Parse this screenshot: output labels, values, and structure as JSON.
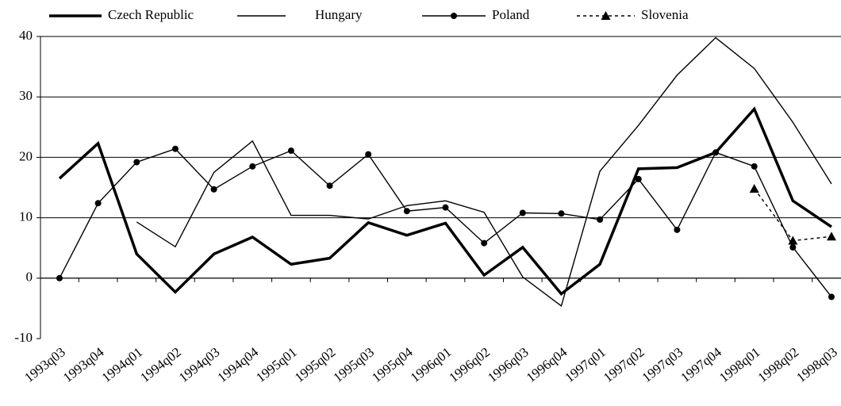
{
  "chart_data": {
    "type": "line",
    "categories": [
      "1993q03",
      "1993q04",
      "1994q01",
      "1994q02",
      "1994q03",
      "1994q04",
      "1995q01",
      "1995q02",
      "1995q03",
      "1995q04",
      "1996q01",
      "1996q02",
      "1996q03",
      "1996q04",
      "1997q01",
      "1997q02",
      "1997q03",
      "1997q04",
      "1998q01",
      "1998q02",
      "1998q03"
    ],
    "ylim": [
      -10,
      40
    ],
    "yticks": [
      -10,
      0,
      10,
      20,
      30,
      40
    ],
    "grid": true,
    "series": [
      {
        "name": "Czech Republic",
        "color": "#000000",
        "line_width": 3.5,
        "dash": "none",
        "marker": "none",
        "values": [
          16.5,
          22.3,
          4,
          -2.3,
          4,
          6.8,
          2.3,
          3.3,
          9.2,
          7.1,
          9.1,
          0.5,
          5.1,
          -2.6,
          2.3,
          18.1,
          18.3,
          20.8,
          28,
          12.8,
          8.5
        ]
      },
      {
        "name": "Hungary",
        "color": "#000000",
        "line_width": 1.4,
        "dash": "none",
        "marker": "none",
        "values": [
          null,
          null,
          9.3,
          5.2,
          17.5,
          22.7,
          10.4,
          10.4,
          9.8,
          12,
          12.8,
          10.9,
          0.2,
          -4.6,
          17.7,
          25.3,
          33.6,
          39.8,
          34.7,
          25.8,
          15.6
        ]
      },
      {
        "name": "Poland",
        "color": "#000000",
        "line_width": 1.4,
        "dash": "none",
        "marker": "circle",
        "values": [
          0,
          12.4,
          19.2,
          21.4,
          14.7,
          18.5,
          21.1,
          15.3,
          20.5,
          11.1,
          11.7,
          5.8,
          10.8,
          10.7,
          9.7,
          16.4,
          8,
          20.8,
          18.5,
          5.1,
          -3.1
        ]
      },
      {
        "name": "Slovenia",
        "color": "#000000",
        "line_width": 1.4,
        "dash": "4 4",
        "marker": "triangle",
        "values": [
          null,
          null,
          null,
          null,
          null,
          null,
          null,
          null,
          null,
          null,
          null,
          null,
          null,
          null,
          null,
          null,
          null,
          null,
          14.8,
          6.2,
          6.9
        ]
      }
    ]
  }
}
